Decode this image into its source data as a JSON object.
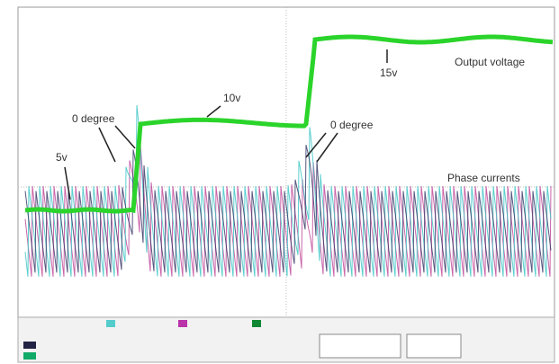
{
  "annotations": {
    "zero_degree_left": "0 degree",
    "zero_degree_right": "0 degree",
    "five_v": "5v",
    "ten_v": "10v",
    "fifteen_v": "15v",
    "output_voltage": "Output voltage",
    "phase_currents": "Phase currents"
  }
}
